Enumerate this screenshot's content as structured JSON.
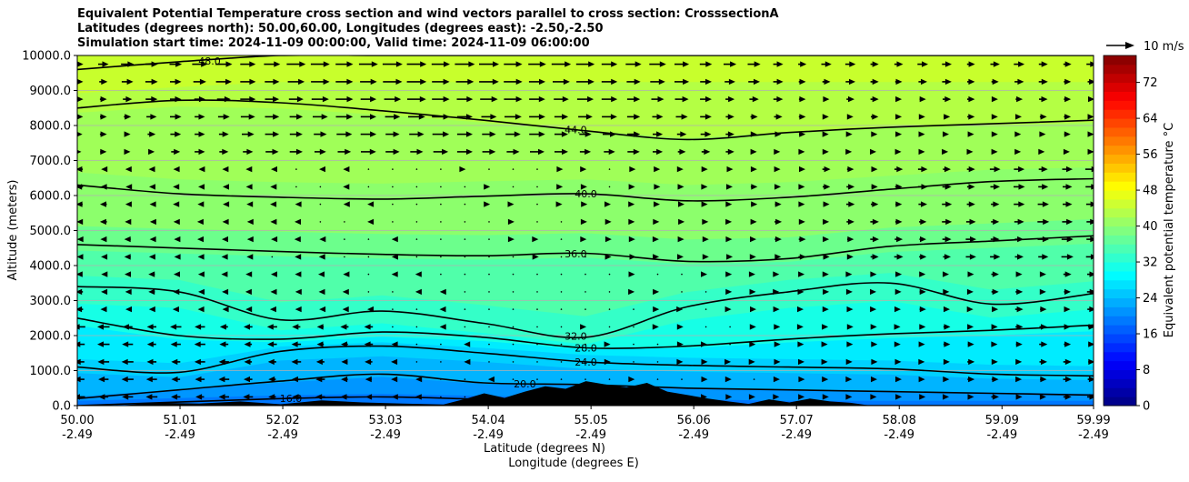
{
  "chart_data": {
    "type": "contourf",
    "title_lines": [
      "Equivalent Potential Temperature cross section and wind vectors parallel to cross section: CrosssectionA",
      "Latitudes (degrees north): 50.00,60.00, Longitudes (degrees east): -2.50,-2.50",
      "Simulation start time: 2024-11-09 00:00:00, Valid time: 2024-11-09 06:00:00"
    ],
    "xlabel_line1": "Latitude (degrees N)",
    "xlabel_line2": "Longitude (degrees E)",
    "ylabel": "Altitude (meters)",
    "x_tick_lat": [
      "50.00",
      "51.01",
      "52.02",
      "53.03",
      "54.04",
      "55.05",
      "56.06",
      "57.07",
      "58.08",
      "59.09",
      "59.99"
    ],
    "x_tick_lon": [
      "-2.49",
      "-2.49",
      "-2.49",
      "-2.49",
      "-2.49",
      "-2.49",
      "-2.49",
      "-2.49",
      "-2.49",
      "-2.49",
      "-2.49"
    ],
    "y_ticks": [
      0,
      1000,
      2000,
      3000,
      4000,
      5000,
      6000,
      7000,
      8000,
      9000,
      10000
    ],
    "y_tick_labels": [
      "0.0",
      "1000.0",
      "2000.0",
      "3000.0",
      "4000.0",
      "5000.0",
      "6000.0",
      "7000.0",
      "8000.0",
      "9000.0",
      "10000.0"
    ],
    "ylim": [
      0,
      10000
    ],
    "xlim": [
      50.0,
      59.99
    ],
    "grid": "horizontal",
    "colorbar": {
      "label": "Equivalent potential temperature $^\\circ$C",
      "label_text": "Equivalent potential temperature °C",
      "range": [
        0,
        78
      ],
      "ticks": [
        0,
        8,
        16,
        24,
        32,
        40,
        48,
        56,
        64,
        72
      ],
      "tick_labels": [
        "0",
        "8",
        "16",
        "24",
        "32",
        "40",
        "48",
        "56",
        "64",
        "72"
      ],
      "colormap": "jet"
    },
    "quiver_key": "10 m/s",
    "contour_levels": [
      {
        "value": 48,
        "label": "48.0",
        "alt": [
          9600,
          9820,
          10000,
          10000,
          10000,
          10000,
          10000,
          10000,
          10000,
          10000,
          10000
        ],
        "label_lat": 51.3
      },
      {
        "value": 44,
        "label": "44.0",
        "alt": [
          8500,
          8720,
          8650,
          8420,
          8150,
          7850,
          7600,
          7800,
          7950,
          8050,
          8150
        ],
        "label_lat": 54.9
      },
      {
        "value": 40,
        "label": "40.0",
        "alt": [
          6300,
          6050,
          5950,
          5900,
          5980,
          6050,
          5850,
          5950,
          6180,
          6400,
          6480
        ],
        "label_lat": 55.0
      },
      {
        "value": 36,
        "label": "36.0",
        "alt": [
          4600,
          4500,
          4400,
          4320,
          4280,
          4350,
          4120,
          4200,
          4550,
          4700,
          4850
        ],
        "label_lat": 54.9
      },
      {
        "value": 32,
        "label": "32.0",
        "alt": [
          3400,
          3250,
          2450,
          2700,
          2350,
          1950,
          2820,
          3250,
          3500,
          2900,
          3200
        ],
        "label_lat": 54.9
      },
      {
        "value": 28,
        "label": "28.0",
        "alt": [
          2500,
          2000,
          1900,
          2100,
          1950,
          1650,
          1700,
          1900,
          2050,
          2150,
          2300
        ],
        "label_lat": 55.0
      },
      {
        "value": 24,
        "label": "24.0",
        "alt": [
          1100,
          950,
          1550,
          1700,
          1500,
          1250,
          1150,
          1100,
          1050,
          900,
          850
        ],
        "label_lat": 55.0
      },
      {
        "value": 20,
        "label": "20.0",
        "alt": [
          200,
          450,
          700,
          900,
          650,
          600,
          500,
          450,
          400,
          350,
          300
        ],
        "label_lat": 54.4
      },
      {
        "value": 16,
        "label": "16.0",
        "alt": [
          0,
          100,
          200,
          250,
          180,
          120,
          60,
          0,
          0,
          0,
          0
        ],
        "label_lat": 52.1
      }
    ],
    "fill_bands": [
      {
        "upper": 10000,
        "color": "#c8ff2c"
      },
      {
        "upper": 9200,
        "color": "#b4ff44"
      },
      {
        "upper": 8100,
        "color": "#a0ff58"
      },
      {
        "upper": 6500,
        "color": "#8cff6c"
      },
      {
        "upper": 5000,
        "color": "#6cff8c"
      },
      {
        "upper": 4300,
        "color": "#50ffaa"
      },
      {
        "upper": 3300,
        "color": "#34ffc8"
      },
      {
        "upper": 2500,
        "color": "#16ffe6"
      },
      {
        "upper": 1900,
        "color": "#00ecff"
      },
      {
        "upper": 1400,
        "color": "#00d0ff"
      },
      {
        "upper": 1000,
        "color": "#00b4ff"
      },
      {
        "upper": 500,
        "color": "#0096ff"
      },
      {
        "upper": 200,
        "color": "#0078ff"
      }
    ],
    "terrain": {
      "lats": [
        50.4,
        50.8,
        51.2,
        51.6,
        52.0,
        52.4,
        52.8,
        53.2,
        53.6,
        53.8,
        54.0,
        54.2,
        54.4,
        54.6,
        54.8,
        55.0,
        55.2,
        55.4,
        55.6,
        55.8,
        56.0,
        56.2,
        56.4,
        56.6,
        56.8,
        57.0,
        57.2,
        57.4,
        57.6,
        57.8
      ],
      "heights": [
        0,
        80,
        60,
        120,
        40,
        150,
        90,
        60,
        30,
        180,
        350,
        220,
        400,
        550,
        480,
        700,
        600,
        520,
        650,
        400,
        300,
        200,
        120,
        50,
        180,
        90,
        200,
        120,
        80,
        0
      ]
    }
  }
}
